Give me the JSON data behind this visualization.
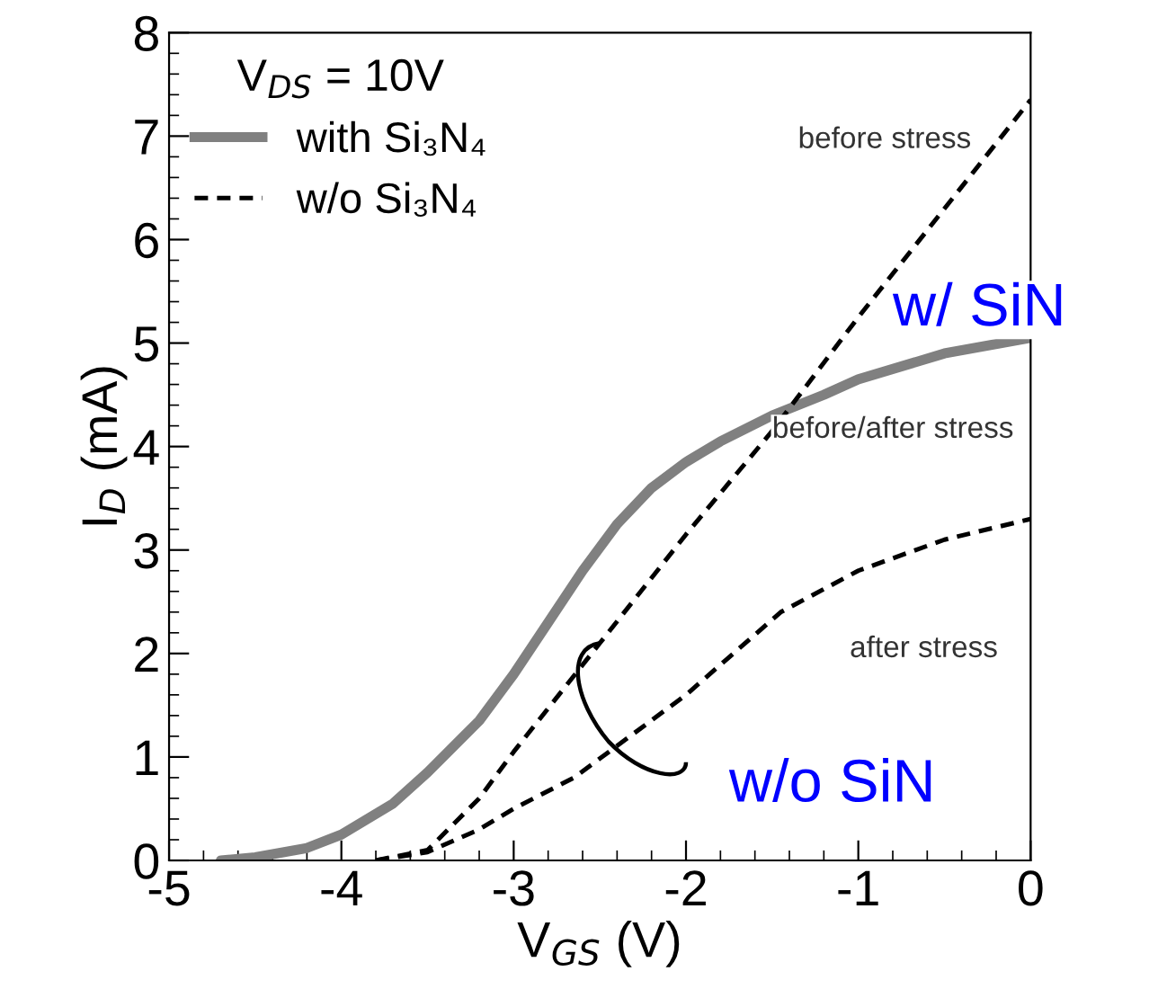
{
  "chart_data": {
    "type": "line",
    "xlabel": "V$_{GS}$ (V)",
    "ylabel": "I$_{D}$ (mA)",
    "legend_title": "V$_{DS}$ = 10V",
    "xlim": [
      -5,
      0
    ],
    "ylim": [
      0,
      8
    ],
    "xticks": [
      -5,
      -4,
      -3,
      -2,
      -1,
      0
    ],
    "yticks": [
      0,
      1,
      2,
      3,
      4,
      5,
      6,
      7,
      8
    ],
    "grid": false,
    "legend": "top left",
    "series": [
      {
        "name": "with Si₃N₄",
        "color": "#808080",
        "line_style": "solid",
        "x": [
          -4.7,
          -4.5,
          -4.2,
          -4.0,
          -3.7,
          -3.5,
          -3.2,
          -3.0,
          -2.8,
          -2.6,
          -2.4,
          -2.2,
          -2.0,
          -1.8,
          -1.5,
          -1.2,
          -1.0,
          -0.5,
          0.0
        ],
        "values": [
          0.0,
          0.03,
          0.12,
          0.25,
          0.55,
          0.85,
          1.35,
          1.8,
          2.3,
          2.8,
          3.25,
          3.6,
          3.85,
          4.05,
          4.3,
          4.5,
          4.65,
          4.9,
          5.05
        ]
      },
      {
        "name": "w/o Si₃N₄",
        "color": "#000000",
        "line_style": "dashed",
        "x": [
          -3.8,
          -3.5,
          -3.2,
          -3.0,
          -2.5,
          -2.0,
          -1.5,
          -1.0,
          -0.5,
          0.0
        ],
        "values": [
          0.0,
          0.1,
          0.6,
          1.05,
          2.1,
          3.15,
          4.15,
          5.25,
          6.3,
          7.35
        ]
      },
      {
        "color": "#000000",
        "line_style": "dashed",
        "x": [
          -3.8,
          -3.5,
          -3.2,
          -3.0,
          -2.65,
          -2.0,
          -1.45,
          -1.0,
          -0.5,
          0.0
        ],
        "values": [
          0.0,
          0.08,
          0.3,
          0.5,
          0.8,
          1.6,
          2.4,
          2.8,
          3.1,
          3.3
        ]
      }
    ],
    "annotations": [
      "before stress",
      "before/after stress",
      "after stress",
      "w/ SiN",
      {
        "text": "w/o SiN",
        "x": -2.5,
        "y": 2.1
      }
    ]
  }
}
